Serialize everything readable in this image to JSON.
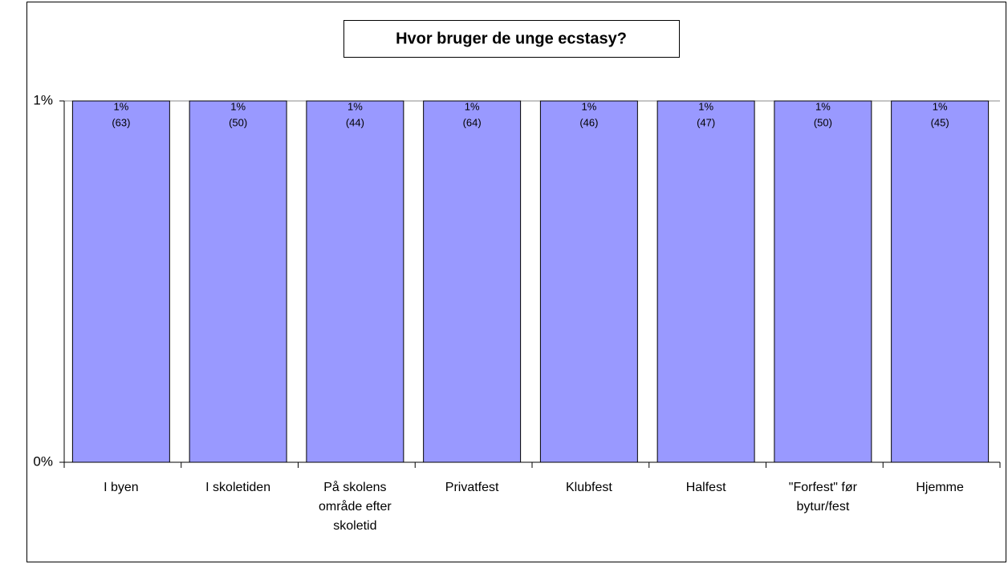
{
  "chart_data": {
    "type": "bar",
    "title": "Hvor bruger de unge ecstasy?",
    "categories": [
      "I byen",
      "I skoletiden",
      "På skolens område efter skoletid",
      "Privatfest",
      "Klubfest",
      "Halfest",
      "\"Forfest\" før bytur/fest",
      "Hjemme"
    ],
    "values": [
      1,
      1,
      1,
      1,
      1,
      1,
      1,
      1
    ],
    "value_labels": [
      "1%",
      "1%",
      "1%",
      "1%",
      "1%",
      "1%",
      "1%",
      "1%"
    ],
    "count_labels": [
      "(63)",
      "(50)",
      "(44)",
      "(64)",
      "(46)",
      "(47)",
      "(50)",
      "(45)"
    ],
    "color": "#9999ff",
    "ylim": [
      0,
      1
    ],
    "yticks": [
      {
        "value": 0,
        "label": "0%"
      },
      {
        "value": 1,
        "label": "1%"
      }
    ],
    "grid": true
  }
}
